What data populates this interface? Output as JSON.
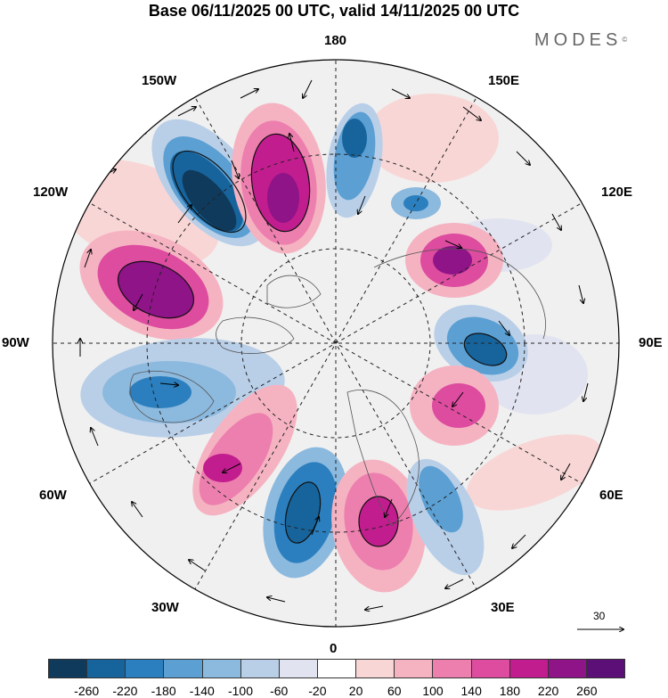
{
  "title": "Base 06/11/2025 00 UTC, valid 14/11/2025 00 UTC",
  "brand": "MODES",
  "brand_mark": "©",
  "longitude_labels": {
    "top": "180",
    "bottom": "0",
    "left": "90W",
    "right": "90E",
    "upper_left_near": "150W",
    "upper_left_far": "120W",
    "upper_right_near": "150E",
    "upper_right_far": "120E",
    "lower_left_far": "60W",
    "lower_left_near": "30W",
    "lower_right_far": "60E",
    "lower_right_near": "30E"
  },
  "reference_vector": {
    "label": "30"
  },
  "colorbar": {
    "colors": [
      "#0f3a5c",
      "#17649c",
      "#2b7fbe",
      "#5b9fd3",
      "#8cb9de",
      "#b9cfe8",
      "#e1e3f0",
      "#ffffff",
      "#f9d6d6",
      "#f5b3c2",
      "#ed7fae",
      "#dd4c9f",
      "#c21d8e",
      "#8e1488",
      "#5d0f78"
    ],
    "tick_labels": [
      "-260",
      "-220",
      "-180",
      "-140",
      "-100",
      "-60",
      "-20",
      "20",
      "60",
      "100",
      "140",
      "180",
      "220",
      "260"
    ]
  }
}
